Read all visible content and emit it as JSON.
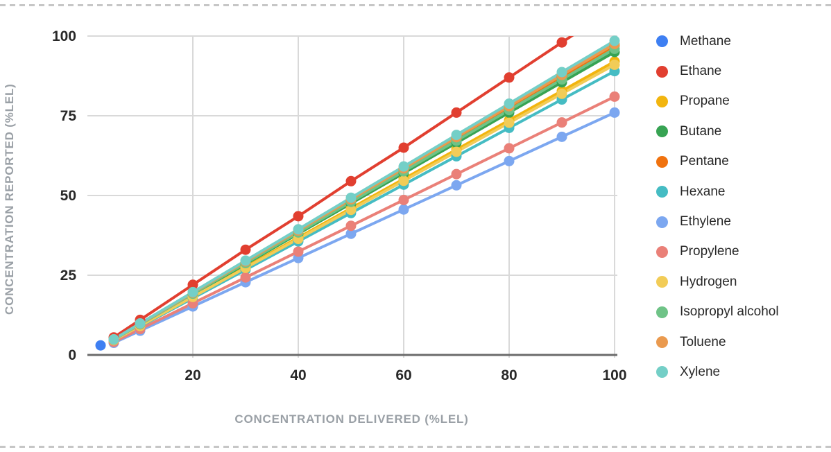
{
  "chart_data": {
    "type": "line",
    "title": "",
    "xlabel": "CONCENTRATION DELIVERED (%LEL)",
    "ylabel": "CONCENTRATION REPORTED (%LEL)",
    "xlim": [
      0,
      100
    ],
    "ylim": [
      0,
      100
    ],
    "x_ticks": [
      20,
      40,
      60,
      80,
      100
    ],
    "y_ticks": [
      0,
      25,
      50,
      75,
      100
    ],
    "grid": true,
    "legend_position": "right",
    "marker": "circle",
    "series": [
      {
        "name": "Methane",
        "color": "#3E7FF2",
        "x": [
          2.5
        ],
        "y": [
          3
        ]
      },
      {
        "name": "Ethane",
        "color": "#E13F30",
        "x": [
          5,
          10,
          20,
          30,
          40,
          50,
          60,
          70,
          80,
          90,
          100
        ],
        "y": [
          5.5,
          11,
          22,
          33,
          43.5,
          54.5,
          65,
          76,
          87,
          98,
          109
        ]
      },
      {
        "name": "Propane",
        "color": "#F2B50F",
        "x": [
          5,
          10,
          20,
          30,
          40,
          50,
          60,
          70,
          80,
          90,
          100
        ],
        "y": [
          4.6,
          9.2,
          18.4,
          27.6,
          36.8,
          46,
          55.2,
          64.4,
          73.6,
          82.8,
          92
        ]
      },
      {
        "name": "Butane",
        "color": "#37A353",
        "x": [
          5,
          10,
          20,
          30,
          40,
          50,
          60,
          70,
          80,
          90,
          100
        ],
        "y": [
          4.8,
          9.5,
          19,
          28.5,
          38,
          47.5,
          57,
          66.5,
          76,
          85.5,
          95
        ]
      },
      {
        "name": "Pentane",
        "color": "#F0720E",
        "x": [
          5,
          10,
          20,
          30,
          40,
          50,
          60,
          70,
          80,
          90,
          100
        ],
        "y": [
          4.9,
          9.7,
          19.4,
          29.1,
          38.8,
          48.5,
          58.2,
          67.9,
          77.6,
          87.3,
          97
        ]
      },
      {
        "name": "Hexane",
        "color": "#45BCC3",
        "x": [
          5,
          10,
          20,
          30,
          40,
          50,
          60,
          70,
          80,
          90,
          100
        ],
        "y": [
          4.5,
          8.9,
          17.8,
          26.7,
          35.6,
          44.5,
          53.4,
          62.3,
          71.2,
          80.1,
          89
        ]
      },
      {
        "name": "Ethylene",
        "color": "#7CA7F0",
        "x": [
          5,
          10,
          20,
          30,
          40,
          50,
          60,
          70,
          80,
          90,
          100
        ],
        "y": [
          3.8,
          7.6,
          15.2,
          22.8,
          30.4,
          38,
          45.6,
          53.2,
          60.8,
          68.4,
          76
        ]
      },
      {
        "name": "Propylene",
        "color": "#EA8078",
        "x": [
          5,
          10,
          20,
          30,
          40,
          50,
          60,
          70,
          80,
          90,
          100
        ],
        "y": [
          4.1,
          8.1,
          16.2,
          24.3,
          32.4,
          40.5,
          48.6,
          56.7,
          64.8,
          72.9,
          81
        ]
      },
      {
        "name": "Hydrogen",
        "color": "#F2CC57",
        "x": [
          5,
          10,
          20,
          30,
          40,
          50,
          60,
          70,
          80,
          90,
          100
        ],
        "y": [
          4.6,
          9.1,
          18.2,
          27.3,
          36.4,
          45.5,
          54.6,
          63.7,
          72.8,
          81.9,
          91
        ]
      },
      {
        "name": "Isopropyl alcohol",
        "color": "#6FC387",
        "x": [
          5,
          10,
          20,
          30,
          40,
          50,
          60,
          70,
          80,
          90,
          100
        ],
        "y": [
          4.8,
          9.6,
          19.2,
          28.8,
          38.4,
          48,
          57.6,
          67.2,
          76.8,
          86.4,
          96
        ]
      },
      {
        "name": "Toluene",
        "color": "#EA9A4F",
        "x": [
          5,
          10,
          20,
          30,
          40,
          50,
          60,
          70,
          80,
          90,
          100
        ],
        "y": [
          4.9,
          9.8,
          19.5,
          29.3,
          39,
          48.8,
          58.5,
          68.3,
          78,
          87.8,
          97.5
        ]
      },
      {
        "name": "Xylene",
        "color": "#74CFC7",
        "x": [
          5,
          10,
          20,
          30,
          40,
          50,
          60,
          70,
          80,
          90,
          100
        ],
        "y": [
          4.9,
          9.9,
          19.7,
          29.6,
          39.4,
          49.3,
          59.1,
          69,
          78.8,
          88.7,
          98.5
        ]
      }
    ],
    "style_colors": {
      "grid": "#d9d9d9",
      "baseline": "#6b6b6b",
      "tick_label": "#282828",
      "axis_title": "#9aa0a6"
    }
  }
}
